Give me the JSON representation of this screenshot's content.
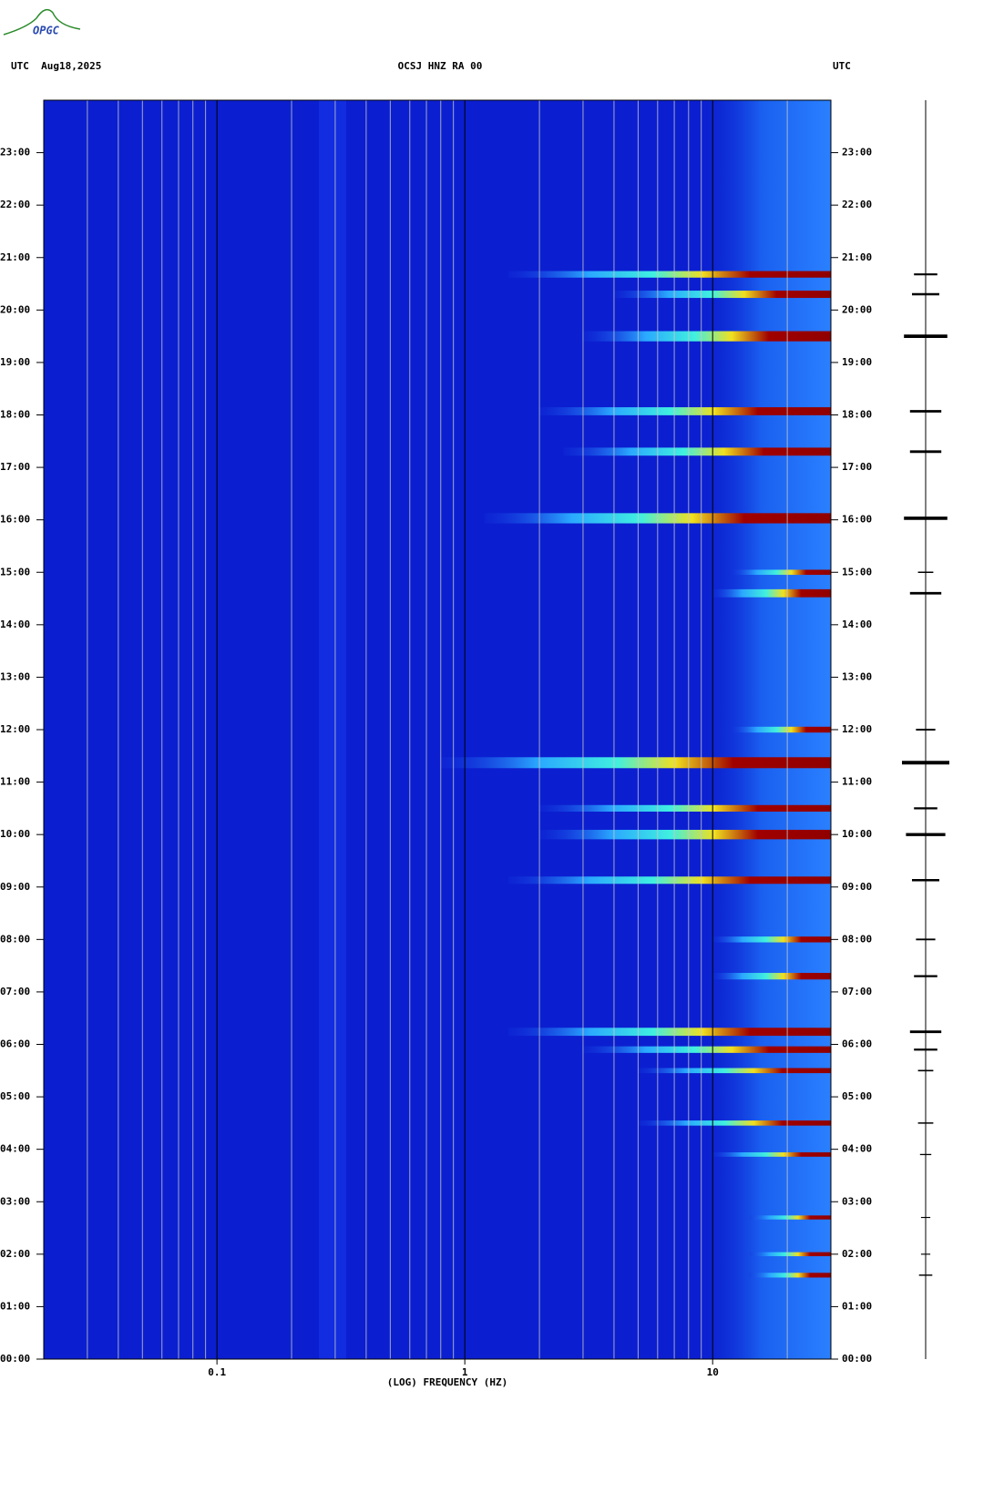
{
  "logo": "OPGC",
  "chart_data": {
    "type": "spectrogram",
    "title": "OCSJ HNZ RA 00",
    "date_label": "UTC  Aug18,2025",
    "timezone_label": "UTC",
    "x_label": "(LOG) FREQUENCY (HZ)",
    "xscale": "log",
    "xlim": [
      0.02,
      30
    ],
    "xticks": [
      0.1,
      1,
      10
    ],
    "xminorticks": [
      0.03,
      0.04,
      0.05,
      0.06,
      0.07,
      0.08,
      0.09,
      0.2,
      0.3,
      0.4,
      0.5,
      0.6,
      0.7,
      0.8,
      0.9,
      2,
      3,
      4,
      5,
      6,
      7,
      8,
      9,
      20
    ],
    "ylim": [
      0,
      24
    ],
    "yticks": [
      {
        "value": 0,
        "label": "00:00"
      },
      {
        "value": 1,
        "label": "01:00"
      },
      {
        "value": 2,
        "label": "02:00"
      },
      {
        "value": 3,
        "label": "03:00"
      },
      {
        "value": 4,
        "label": "04:00"
      },
      {
        "value": 5,
        "label": "05:00"
      },
      {
        "value": 6,
        "label": "06:00"
      },
      {
        "value": 7,
        "label": "07:00"
      },
      {
        "value": 8,
        "label": "08:00"
      },
      {
        "value": 9,
        "label": "09:00"
      },
      {
        "value": 10,
        "label": "10:00"
      },
      {
        "value": 11,
        "label": "11:00"
      },
      {
        "value": 12,
        "label": "12:00"
      },
      {
        "value": 13,
        "label": "13:00"
      },
      {
        "value": 14,
        "label": "14:00"
      },
      {
        "value": 15,
        "label": "15:00"
      },
      {
        "value": 16,
        "label": "16:00"
      },
      {
        "value": 17,
        "label": "17:00"
      },
      {
        "value": 18,
        "label": "18:00"
      },
      {
        "value": 19,
        "label": "19:00"
      },
      {
        "value": 20,
        "label": "20:00"
      },
      {
        "value": 21,
        "label": "21:00"
      },
      {
        "value": 22,
        "label": "22:00"
      },
      {
        "value": 23,
        "label": "23:00"
      }
    ],
    "events": [
      {
        "time": 20.68,
        "fmin": 1.5,
        "amplitude": 0.4
      },
      {
        "time": 20.3,
        "fmin": 4,
        "amplitude": 0.5
      },
      {
        "time": 19.5,
        "fmin": 3,
        "amplitude": 0.9
      },
      {
        "time": 18.07,
        "fmin": 2,
        "amplitude": 0.6
      },
      {
        "time": 17.3,
        "fmin": 2.5,
        "amplitude": 0.6
      },
      {
        "time": 16.03,
        "fmin": 1.2,
        "amplitude": 0.9
      },
      {
        "time": 15.0,
        "fmin": 12,
        "amplitude": 0.2
      },
      {
        "time": 14.6,
        "fmin": 10,
        "amplitude": 0.6
      },
      {
        "time": 12.0,
        "fmin": 12,
        "amplitude": 0.3
      },
      {
        "time": 11.37,
        "fmin": 0.8,
        "amplitude": 1.0
      },
      {
        "time": 10.5,
        "fmin": 2,
        "amplitude": 0.4
      },
      {
        "time": 10.0,
        "fmin": 2,
        "amplitude": 0.8
      },
      {
        "time": 9.13,
        "fmin": 1.5,
        "amplitude": 0.5
      },
      {
        "time": 8.0,
        "fmin": 10,
        "amplitude": 0.3
      },
      {
        "time": 7.3,
        "fmin": 10,
        "amplitude": 0.4
      },
      {
        "time": 6.24,
        "fmin": 1.5,
        "amplitude": 0.6
      },
      {
        "time": 5.9,
        "fmin": 3,
        "amplitude": 0.4
      },
      {
        "time": 5.5,
        "fmin": 5,
        "amplitude": 0.2
      },
      {
        "time": 4.5,
        "fmin": 5,
        "amplitude": 0.2
      },
      {
        "time": 3.9,
        "fmin": 10,
        "amplitude": 0.1
      },
      {
        "time": 2.7,
        "fmin": 14,
        "amplitude": 0.05
      },
      {
        "time": 2.0,
        "fmin": 14,
        "amplitude": 0.05
      },
      {
        "time": 1.6,
        "fmin": 14,
        "amplitude": 0.15
      }
    ]
  }
}
